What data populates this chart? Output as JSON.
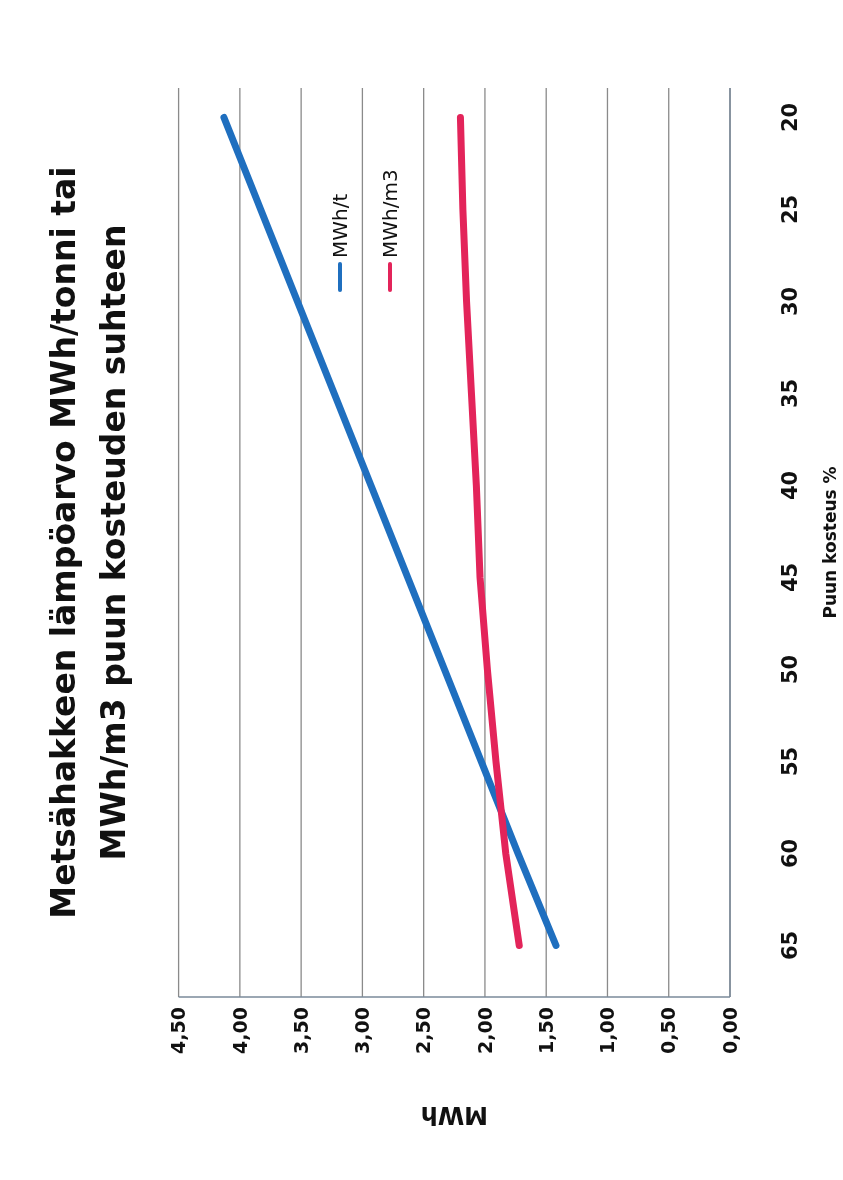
{
  "chart_data": {
    "type": "line",
    "title": "Metsähakkeen lämpöarvo MWh/tonni tai\nMWh/m3 puun kosteuden suhteen",
    "xlabel": "MWh",
    "ylabel": "Puun kosteus %",
    "series": [
      {
        "name": "MWh/t",
        "color": "#1f6fbf",
        "x": [
          4.13,
          3.83,
          3.53,
          3.23,
          2.93,
          2.63,
          2.33,
          2.03,
          1.73,
          1.42
        ],
        "values": [
          20,
          25,
          30,
          35,
          40,
          45,
          50,
          55,
          60,
          65
        ]
      },
      {
        "name": "MWh/m3",
        "color": "#e3245a",
        "x": [
          2.2,
          2.18,
          2.15,
          2.11,
          2.07,
          2.04,
          1.98,
          1.91,
          1.83,
          1.72
        ],
        "values": [
          20,
          25,
          30,
          35,
          40,
          45,
          50,
          55,
          60,
          65
        ]
      }
    ],
    "xlim": [
      4.5,
      0
    ],
    "xticks": [
      {
        "value": 4.5,
        "label": "4,50"
      },
      {
        "value": 4,
        "label": "4,00"
      },
      {
        "value": 3.5,
        "label": "3,50"
      },
      {
        "value": 3,
        "label": "3,00"
      },
      {
        "value": 2.5,
        "label": "2,50"
      },
      {
        "value": 2,
        "label": "2,00"
      },
      {
        "value": 1.5,
        "label": "1,50"
      },
      {
        "value": 1,
        "label": "1,00"
      },
      {
        "value": 0.5,
        "label": "0,50"
      },
      {
        "value": 0,
        "label": "0,00"
      }
    ],
    "ylim": [
      67.8,
      18.4
    ],
    "yticks": [
      20,
      25,
      30,
      35,
      40,
      45,
      50,
      55,
      60,
      65
    ],
    "grid": "x",
    "legend": "top",
    "marker": "none",
    "line_style": "solid"
  }
}
